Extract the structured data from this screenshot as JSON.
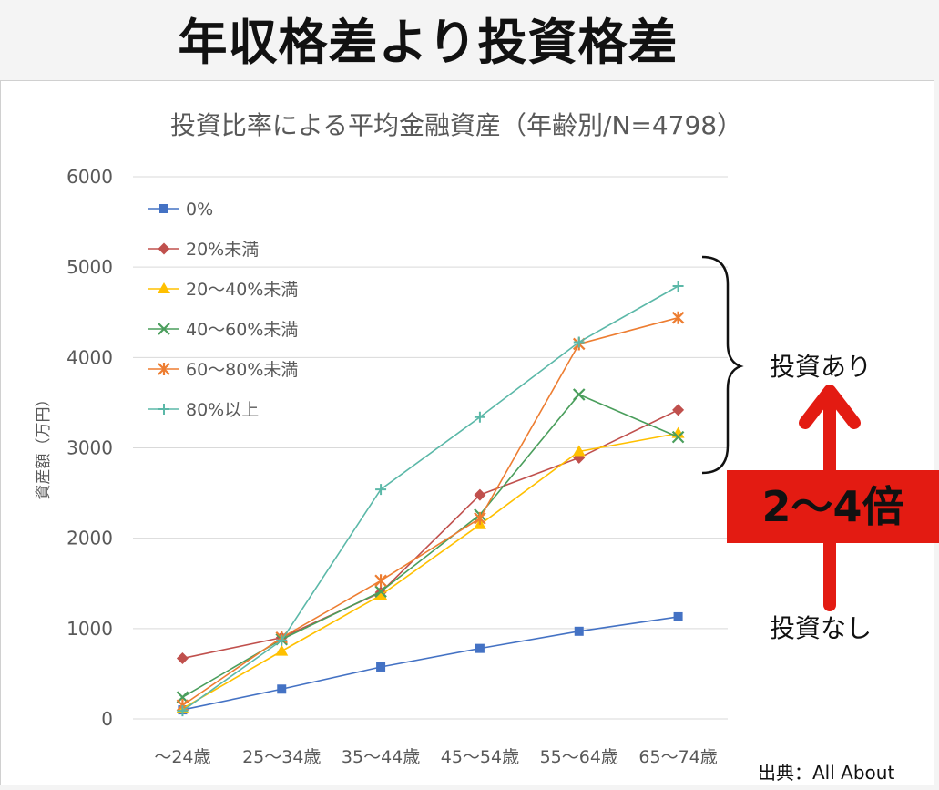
{
  "headline": "年収格差より投資格差",
  "source": "出典：All About",
  "annotations": {
    "with_investment": "投資あり",
    "without_investment": "投資なし",
    "multiplier": "2～4倍"
  },
  "colors": {
    "annotation_arrow": "#e31b12",
    "gridline": "#d9d9d9"
  },
  "chart_data": {
    "type": "line",
    "title": "投資比率による平均金融資産（年齢別/N=4798）",
    "xlabel": "",
    "ylabel": "資産額（万円）",
    "categories": [
      "～24歳",
      "25～34歳",
      "35～44歳",
      "45～54歳",
      "55～64歳",
      "65～74歳"
    ],
    "ylim": [
      0,
      6000
    ],
    "yticks": [
      0,
      1000,
      2000,
      3000,
      4000,
      5000,
      6000
    ],
    "grid": true,
    "legend_position": "top-left",
    "series": [
      {
        "name": "0%",
        "color": "#4472c4",
        "marker": "square",
        "values": [
          100,
          330,
          575,
          780,
          970,
          1130
        ]
      },
      {
        "name": "20%未満",
        "color": "#c0504d",
        "marker": "diamond",
        "values": [
          670,
          900,
          1400,
          2480,
          2890,
          3420
        ]
      },
      {
        "name": "20～40%未満",
        "color": "#ffc000",
        "marker": "triangle",
        "values": [
          115,
          750,
          1370,
          2150,
          2960,
          3160
        ]
      },
      {
        "name": "40～60%未満",
        "color": "#4a9e5c",
        "marker": "x",
        "values": [
          240,
          880,
          1410,
          2260,
          3590,
          3120
        ]
      },
      {
        "name": "60～80%未満",
        "color": "#ed7d31",
        "marker": "asterisk",
        "values": [
          150,
          900,
          1530,
          2220,
          4150,
          4440
        ]
      },
      {
        "name": "80%以上",
        "color": "#5bb8a8",
        "marker": "plus",
        "values": [
          90,
          870,
          2540,
          3340,
          4170,
          4790
        ]
      }
    ]
  }
}
